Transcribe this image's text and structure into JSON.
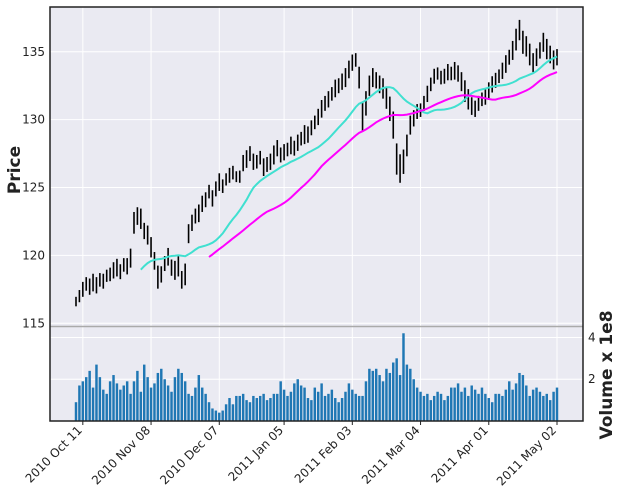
{
  "chart_data": {
    "type": "ohlc",
    "title": "",
    "xlabel": "",
    "ylabel": "Price",
    "volume_label": "Volume x 1e8",
    "grid": true,
    "price_ylim": [
      114.8,
      138.3
    ],
    "volume_ylim": [
      0,
      4.5
    ],
    "price_yticks": [
      115,
      120,
      125,
      130,
      135
    ],
    "volume_yticks": [
      2,
      4
    ],
    "volume_ytick_labels": [
      "2",
      "4"
    ],
    "x_ticks": [
      {
        "index": 2,
        "label": "2010 Oct 11"
      },
      {
        "index": 22,
        "label": "2010 Nov 08"
      },
      {
        "index": 42,
        "label": "2010 Dec 07"
      },
      {
        "index": 61,
        "label": "2011 Jan 05"
      },
      {
        "index": 81,
        "label": "2011 Feb 03"
      },
      {
        "index": 101,
        "label": "2011 Mar 04"
      },
      {
        "index": 121,
        "label": "2011 Apr 01"
      },
      {
        "index": 141,
        "label": "2011 May 02"
      }
    ],
    "colors": {
      "bars": "#000000",
      "mav20": "#40e0d0",
      "mav40": "#ff00ff",
      "volume": "#1f77b4"
    },
    "close": [
      116.6,
      117.0,
      117.5,
      117.9,
      117.7,
      118.0,
      117.8,
      118.2,
      118.1,
      118.5,
      118.6,
      118.9,
      119.1,
      118.8,
      119.3,
      119.2,
      119.8,
      122.4,
      122.9,
      122.7,
      121.8,
      121.5,
      120.6,
      119.6,
      118.4,
      118.6,
      119.4,
      119.9,
      119.1,
      118.9,
      119.2,
      118.2,
      118.6,
      121.6,
      122.4,
      122.9,
      123.1,
      123.8,
      124.1,
      124.7,
      124.2,
      124.9,
      125.4,
      125.1,
      125.6,
      125.9,
      126.1,
      125.8,
      125.8,
      126.8,
      127.1,
      127.5,
      126.9,
      126.9,
      127.2,
      126.5,
      126.7,
      126.9,
      127.4,
      127.9,
      127.4,
      127.6,
      127.8,
      128.1,
      127.9,
      128.3,
      128.6,
      128.9,
      128.9,
      129.4,
      129.8,
      130.2,
      130.8,
      131.2,
      131.5,
      131.9,
      132.3,
      132.5,
      132.8,
      133.1,
      133.7,
      134.2,
      134.4,
      133.1,
      130.2,
      131.2,
      132.5,
      133.1,
      132.9,
      132.6,
      132.3,
      131.6,
      130.8,
      129.6,
      127.1,
      126.4,
      126.9,
      128.1,
      129.6,
      130.1,
      130.6,
      130.7,
      131.2,
      131.9,
      132.6,
      133.2,
      133.4,
      133.1,
      133.2,
      133.5,
      133.4,
      133.6,
      133.4,
      132.8,
      132.1,
      131.5,
      131.0,
      130.8,
      131.2,
      131.5,
      131.7,
      132.1,
      132.6,
      132.9,
      133.2,
      133.6,
      134.1,
      134.6,
      135.1,
      135.9,
      136.6,
      135.7,
      135.4,
      134.8,
      134.2,
      134.6,
      135.1,
      135.7,
      135.2,
      134.8,
      134.4,
      134.6
    ],
    "range": [
      0.7,
      0.9,
      1.1,
      1.0,
      1.2,
      1.3,
      1.2,
      1.0,
      1.1,
      0.9,
      1.0,
      1.2,
      1.3,
      1.1,
      1.0,
      1.2,
      1.4,
      1.6,
      1.3,
      1.5,
      1.2,
      1.4,
      1.5,
      1.3,
      1.7,
      1.2,
      1.1,
      1.3,
      1.2,
      1.4,
      1.5,
      1.3,
      1.6,
      1.4,
      1.2,
      1.1,
      1.3,
      1.2,
      1.1,
      1.0,
      1.2,
      1.1,
      1.3,
      1.0,
      0.9,
      1.1,
      1.0,
      0.8,
      0.9,
      1.2,
      1.3,
      1.1,
      1.2,
      1.0,
      1.0,
      1.3,
      1.1,
      1.2,
      1.4,
      1.2,
      1.1,
      1.2,
      1.0,
      1.3,
      1.1,
      1.2,
      1.0,
      1.4,
      1.2,
      1.1,
      1.0,
      1.2,
      1.3,
      1.1,
      1.2,
      1.0,
      1.3,
      1.1,
      1.2,
      1.4,
      1.3,
      1.2,
      1.0,
      1.6,
      2.2,
      1.8,
      1.5,
      1.4,
      1.2,
      1.3,
      1.5,
      1.6,
      1.8,
      2.0,
      2.3,
      2.1,
      1.8,
      1.6,
      1.4,
      1.2,
      1.1,
      1.0,
      1.1,
      1.2,
      1.0,
      1.1,
      0.9,
      1.0,
      1.1,
      1.2,
      1.0,
      1.3,
      1.2,
      1.4,
      1.6,
      1.5,
      1.3,
      1.2,
      1.1,
      1.0,
      1.2,
      1.3,
      1.2,
      1.1,
      1.0,
      1.2,
      1.3,
      1.1,
      1.4,
      1.6,
      1.5,
      1.7,
      1.5,
      1.6,
      1.4,
      1.3,
      1.2,
      1.4,
      1.5,
      1.3,
      1.4,
      1.2
    ],
    "volume": [
      0.9,
      1.7,
      1.9,
      2.1,
      2.4,
      1.6,
      2.7,
      2.1,
      1.5,
      1.3,
      1.9,
      2.2,
      1.8,
      1.5,
      1.7,
      1.9,
      1.3,
      1.9,
      2.4,
      1.4,
      2.7,
      2.1,
      1.6,
      1.8,
      2.3,
      2.5,
      2.0,
      1.7,
      1.4,
      2.1,
      2.5,
      2.3,
      1.9,
      1.3,
      1.2,
      1.6,
      2.2,
      1.6,
      1.3,
      0.9,
      0.6,
      0.5,
      0.4,
      0.5,
      0.8,
      1.1,
      0.8,
      1.2,
      1.2,
      1.3,
      1.0,
      0.9,
      1.2,
      1.1,
      1.2,
      1.3,
      1.0,
      1.1,
      1.3,
      1.3,
      1.9,
      1.5,
      1.2,
      1.4,
      1.8,
      2.0,
      1.7,
      1.6,
      1.1,
      1.0,
      1.6,
      1.4,
      1.8,
      1.2,
      1.3,
      1.5,
      1.1,
      0.9,
      1.1,
      1.4,
      1.8,
      1.5,
      1.3,
      1.2,
      1.2,
      1.9,
      2.5,
      2.4,
      2.5,
      2.2,
      1.9,
      2.5,
      2.3,
      2.8,
      3.0,
      2.2,
      4.2,
      2.7,
      2.5,
      2.0,
      1.6,
      1.4,
      1.2,
      1.3,
      1.0,
      1.2,
      1.4,
      1.3,
      1.0,
      1.2,
      1.6,
      1.6,
      1.8,
      1.4,
      1.6,
      1.2,
      1.7,
      1.5,
      1.3,
      1.6,
      1.3,
      1.1,
      0.9,
      1.3,
      1.3,
      1.2,
      1.5,
      1.9,
      1.5,
      1.8,
      2.3,
      2.2,
      1.7,
      1.2,
      1.5,
      1.6,
      1.4,
      1.2,
      1.3,
      1.0,
      1.4,
      1.6
    ],
    "series": [
      {
        "name": "",
        "role": "mav20"
      },
      {
        "name": "",
        "role": "mav40"
      }
    ]
  }
}
